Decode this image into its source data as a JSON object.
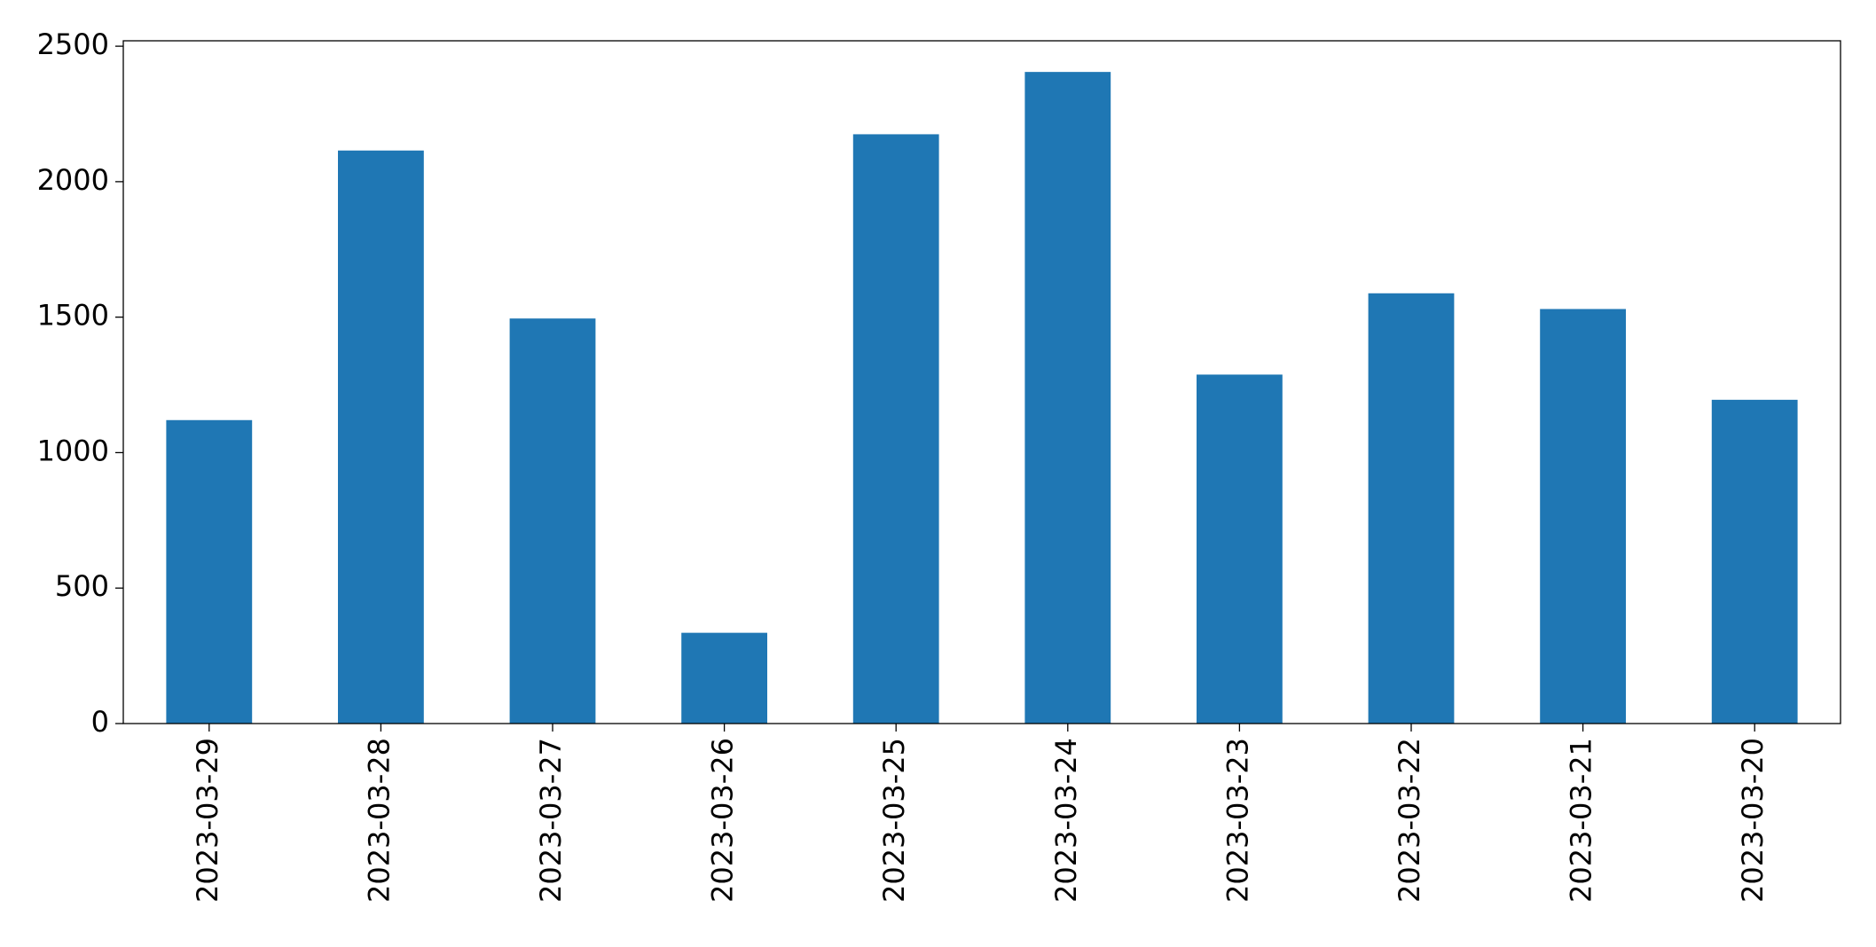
{
  "chart_data": {
    "type": "bar",
    "categories": [
      "2023-03-29",
      "2023-03-28",
      "2023-03-27",
      "2023-03-26",
      "2023-03-25",
      "2023-03-24",
      "2023-03-23",
      "2023-03-22",
      "2023-03-21",
      "2023-03-20"
    ],
    "values": [
      1120,
      2115,
      1495,
      335,
      2175,
      2405,
      1288,
      1588,
      1530,
      1195
    ],
    "color": "#1f77b4",
    "ylim": [
      0,
      2520
    ],
    "yticks": [
      0,
      500,
      1000,
      1500,
      2000,
      2500
    ],
    "grid": false
  }
}
